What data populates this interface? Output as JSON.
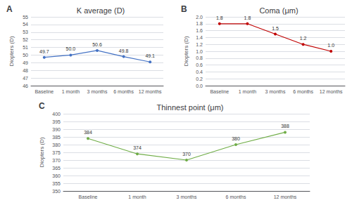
{
  "chart_data": [
    {
      "type": "line",
      "title": "K average (D)",
      "label": "A",
      "categories": [
        "Baseline",
        "1 month",
        "3 months",
        "6 months",
        "12 months"
      ],
      "values": [
        49.7,
        50.0,
        50.6,
        49.8,
        49.1
      ],
      "value_labels": [
        "49.7",
        "50.0",
        "50.6",
        "49.8",
        "49.1"
      ],
      "data_labels": true,
      "ylabel": "Diopters (D)",
      "ylim": [
        46.0,
        55.0
      ],
      "yticks": [
        46,
        47,
        48,
        49,
        50,
        51,
        52,
        53,
        54,
        55
      ],
      "grid": true,
      "color": "#4472c4",
      "marker": "circle"
    },
    {
      "type": "line",
      "title": "Coma (μm)",
      "label": "B",
      "categories": [
        "Baseline",
        "1 month",
        "3 months",
        "6 months",
        "12 months"
      ],
      "values": [
        1.8,
        1.8,
        1.5,
        1.2,
        1.0
      ],
      "value_labels": [
        "1.8",
        "1.8",
        "1.5",
        "1.2",
        "1.0"
      ],
      "data_labels": true,
      "ylabel": "Diopters (D)",
      "ylim": [
        0.0,
        2.0
      ],
      "yticks": [
        {
          "value": 0.0,
          "label": "0.0"
        },
        0.2,
        0.4,
        0.6,
        0.8,
        {
          "value": 1.0,
          "label": "1.0"
        },
        1.2,
        1.4,
        1.6,
        1.8,
        {
          "value": 2.0,
          "label": "2.0"
        }
      ],
      "grid": true,
      "color": "#c00000",
      "marker": "circle"
    },
    {
      "type": "line",
      "title": "Thinnest point (μm)",
      "label": "C",
      "categories": [
        "Baseline",
        "1 month",
        "3 months",
        "6 months",
        "12 months"
      ],
      "values": [
        384,
        374,
        370,
        380,
        388
      ],
      "value_labels": [
        "384",
        "374",
        "370",
        "380",
        "388"
      ],
      "data_labels": true,
      "ylabel": "Diopters (D)",
      "ylim": [
        350,
        400
      ],
      "yticks": [
        350,
        355,
        360,
        365,
        370,
        375,
        380,
        385,
        390,
        395,
        400
      ],
      "grid": true,
      "color": "#70ad47",
      "marker": "circle"
    }
  ]
}
